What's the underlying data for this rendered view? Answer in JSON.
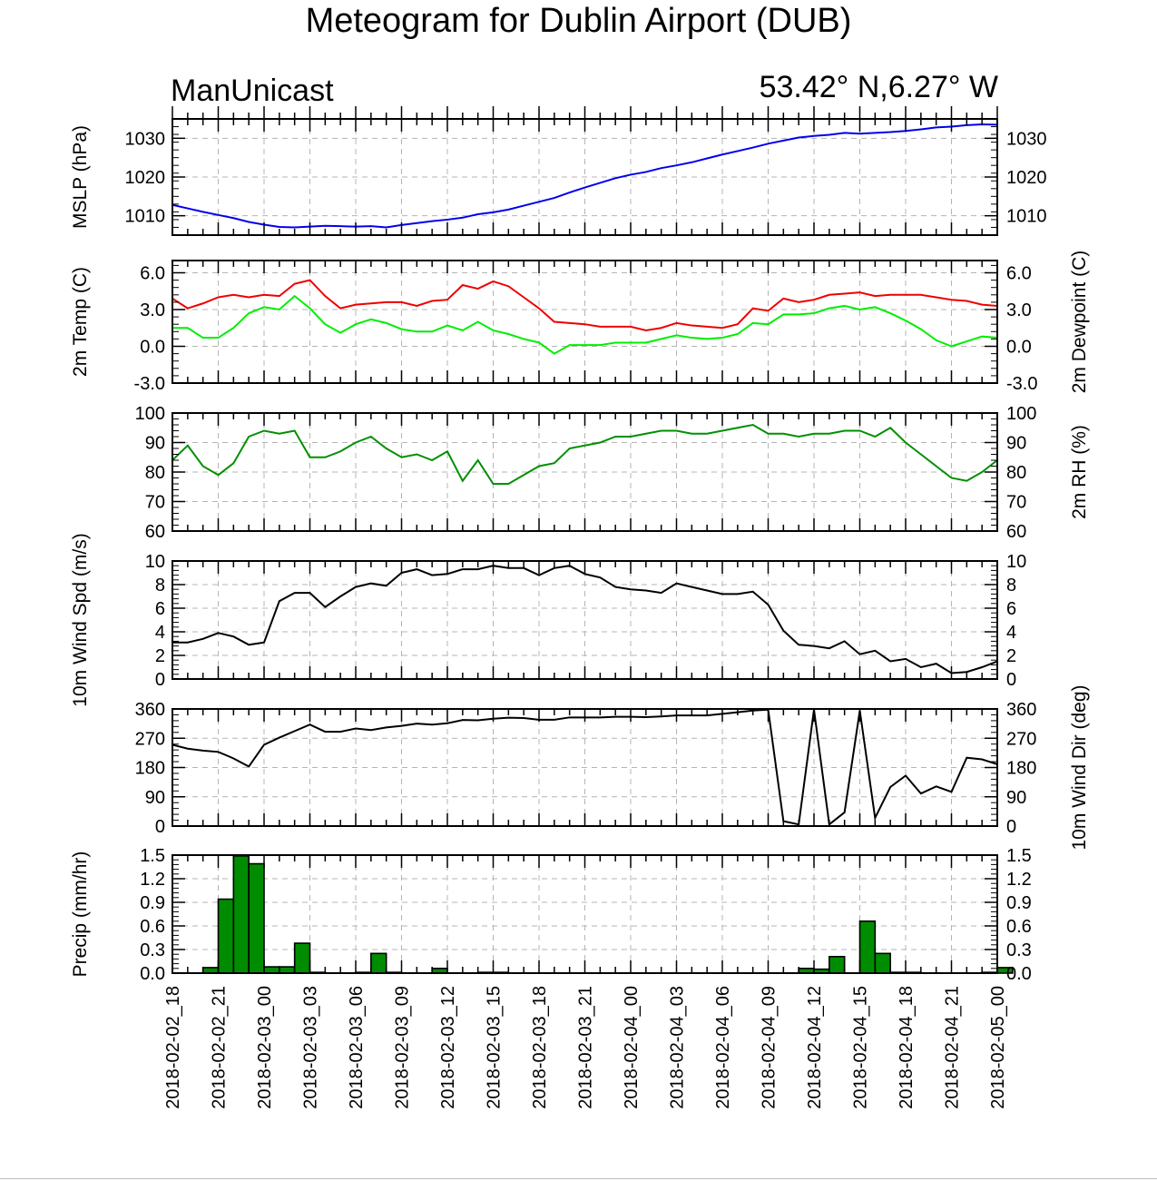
{
  "title": "Meteogram for Dublin Airport (DUB)",
  "model": "ManUnicast",
  "location": "53.42° N,6.27° W",
  "colors": {
    "mslp": "#0000ee",
    "temp": "#ee0000",
    "dewpoint": "#00ee00",
    "rh": "#009000",
    "wind": "#000000",
    "precip_fill": "#008c00",
    "grid": "#b4b4b4"
  },
  "chart_data": [
    {
      "type": "line",
      "name": "mslp",
      "ylabel": "MSLP (hPa)",
      "ylim": [
        1005,
        1035
      ],
      "yticks": [
        1010,
        1020,
        1030
      ],
      "ytick_labels": [
        "1010",
        "1020",
        "1030"
      ],
      "right_ticks": true,
      "series": [
        {
          "color": "#0000ee",
          "values": [
            1012.8,
            1011.9,
            1011.0,
            1010.2,
            1009.4,
            1008.4,
            1007.7,
            1007.1,
            1007.0,
            1007.2,
            1007.4,
            1007.3,
            1007.2,
            1007.3,
            1007.0,
            1007.6,
            1008.1,
            1008.6,
            1009.0,
            1009.5,
            1010.4,
            1010.9,
            1011.6,
            1012.6,
            1013.6,
            1014.6,
            1016.0,
            1017.3,
            1018.5,
            1019.7,
            1020.6,
            1021.3,
            1022.3,
            1023.0,
            1023.8,
            1024.8,
            1025.8,
            1026.7,
            1027.6,
            1028.6,
            1029.4,
            1030.2,
            1030.6,
            1030.9,
            1031.4,
            1031.2,
            1031.4,
            1031.6,
            1031.9,
            1032.3,
            1032.8,
            1033.0,
            1033.4,
            1033.6,
            1033.5,
            1033.4
          ]
        }
      ]
    },
    {
      "type": "line",
      "name": "temperature",
      "ylabel": "2m Temp (C)",
      "ylabel_right": "2m Dewpoint (C)",
      "ylim": [
        -3,
        7
      ],
      "yticks": [
        -3,
        0,
        3,
        6
      ],
      "ytick_labels": [
        "-3.0",
        "0.0",
        "3.0",
        "6.0"
      ],
      "right_ticks": true,
      "series": [
        {
          "color": "#ee0000",
          "values": [
            3.9,
            3.1,
            3.5,
            4.0,
            4.2,
            4.0,
            4.2,
            4.1,
            5.1,
            5.4,
            4.1,
            3.1,
            3.4,
            3.5,
            3.6,
            3.6,
            3.3,
            3.7,
            3.8,
            5.0,
            4.7,
            5.3,
            4.9,
            4.0,
            3.1,
            2.0,
            1.9,
            1.8,
            1.6,
            1.6,
            1.6,
            1.3,
            1.5,
            1.9,
            1.7,
            1.6,
            1.5,
            1.8,
            3.1,
            2.9,
            3.9,
            3.6,
            3.8,
            4.2,
            4.3,
            4.4,
            4.1,
            4.2,
            4.2,
            4.2,
            4.0,
            3.8,
            3.7,
            3.4,
            3.3,
            3.1
          ]
        },
        {
          "color": "#00ee00",
          "values": [
            1.5,
            1.5,
            0.7,
            0.7,
            1.5,
            2.7,
            3.2,
            3.0,
            4.1,
            3.1,
            1.8,
            1.1,
            1.8,
            2.2,
            1.9,
            1.4,
            1.2,
            1.2,
            1.7,
            1.3,
            2.0,
            1.3,
            1.0,
            0.6,
            0.3,
            -0.6,
            0.1,
            0.1,
            0.1,
            0.3,
            0.3,
            0.3,
            0.6,
            0.9,
            0.7,
            0.6,
            0.7,
            1.0,
            1.9,
            1.8,
            2.6,
            2.6,
            2.7,
            3.1,
            3.3,
            3.0,
            3.2,
            2.7,
            2.1,
            1.4,
            0.5,
            0.0,
            0.4,
            0.8,
            0.7,
            0.6
          ]
        }
      ]
    },
    {
      "type": "line",
      "name": "relative-humidity",
      "ylabel_right": "2m RH (%)",
      "ylim": [
        60,
        100
      ],
      "yticks": [
        60,
        70,
        80,
        90,
        100
      ],
      "ytick_labels": [
        "60",
        "70",
        "80",
        "90",
        "100"
      ],
      "right_ticks": true,
      "series": [
        {
          "color": "#009000",
          "values": [
            84,
            89,
            82,
            79,
            83,
            92,
            94,
            93,
            94,
            85,
            85,
            87,
            90,
            92,
            88,
            85,
            86,
            84,
            87,
            77,
            84,
            76,
            76,
            79,
            82,
            83,
            88,
            89,
            90,
            92,
            92,
            93,
            94,
            94,
            93,
            93,
            94,
            95,
            96,
            93,
            93,
            92,
            93,
            93,
            94,
            94,
            92,
            95,
            90,
            86,
            82,
            78,
            77,
            80,
            84,
            83
          ]
        }
      ]
    },
    {
      "type": "line",
      "name": "wind-speed",
      "ylabel": "10m Wind Spd (m/s)",
      "ylim": [
        0,
        10
      ],
      "yticks": [
        0,
        2,
        4,
        6,
        8,
        10
      ],
      "ytick_labels": [
        "0",
        "2",
        "4",
        "6",
        "8",
        "10"
      ],
      "right_ticks": true,
      "series": [
        {
          "color": "#000000",
          "values": [
            3.1,
            3.1,
            3.4,
            3.9,
            3.6,
            2.9,
            3.1,
            6.6,
            7.3,
            7.3,
            6.1,
            7.0,
            7.8,
            8.1,
            7.9,
            9.0,
            9.3,
            8.8,
            8.9,
            9.3,
            9.3,
            9.6,
            9.4,
            9.4,
            8.8,
            9.4,
            9.6,
            8.9,
            8.6,
            7.8,
            7.6,
            7.5,
            7.3,
            8.1,
            7.8,
            7.5,
            7.2,
            7.2,
            7.4,
            6.3,
            4.1,
            2.9,
            2.8,
            2.6,
            3.2,
            2.1,
            2.4,
            1.5,
            1.7,
            1.0,
            1.3,
            0.5,
            0.6,
            1.0,
            1.5,
            2.0
          ]
        }
      ]
    },
    {
      "type": "line",
      "name": "wind-direction",
      "ylabel_right": "10m Wind Dir (deg)",
      "ylim": [
        0,
        360
      ],
      "yticks": [
        0,
        90,
        180,
        270,
        360
      ],
      "ytick_labels": [
        "0",
        "90",
        "180",
        "270",
        "360"
      ],
      "right_ticks": true,
      "series": [
        {
          "color": "#000000",
          "values": [
            250,
            238,
            232,
            228,
            208,
            183,
            250,
            272,
            292,
            312,
            290,
            290,
            300,
            295,
            303,
            308,
            315,
            312,
            316,
            326,
            325,
            330,
            333,
            332,
            327,
            327,
            334,
            334,
            334,
            336,
            336,
            335,
            337,
            340,
            340,
            340,
            345,
            350,
            355,
            358,
            15,
            5,
            358,
            5,
            42,
            355,
            25,
            120,
            155,
            100,
            122,
            105,
            210,
            205,
            190,
            180
          ]
        }
      ]
    },
    {
      "type": "bar",
      "name": "precipitation",
      "ylabel": "Precip (mm/hr)",
      "ylim": [
        0,
        1.5
      ],
      "yticks": [
        0,
        0.3,
        0.6,
        0.9,
        1.2,
        1.5
      ],
      "ytick_labels": [
        "0.0",
        "0.3",
        "0.6",
        "0.9",
        "1.2",
        "1.5"
      ],
      "right_ticks": true,
      "series": [
        {
          "color": "#008c00",
          "values": [
            0,
            0,
            0.07,
            0.94,
            1.49,
            1.39,
            0.08,
            0.08,
            0.38,
            0.01,
            0,
            0,
            0.01,
            0.25,
            0.01,
            0,
            0,
            0.06,
            0,
            0,
            0.01,
            0.01,
            0,
            0,
            0,
            0,
            0,
            0,
            0,
            0,
            0,
            0,
            0,
            0,
            0,
            0,
            0,
            0,
            0,
            0,
            0,
            0.06,
            0.05,
            0.21,
            0,
            0.66,
            0.25,
            0.01,
            0.01,
            0,
            0,
            0,
            0,
            0.01,
            0.07
          ]
        }
      ]
    }
  ],
  "x_axis": {
    "range_hours": [
      0,
      54
    ],
    "tick_labels": [
      "2018-02-02_18",
      "2018-02-02_21",
      "2018-02-03_00",
      "2018-02-03_03",
      "2018-02-03_06",
      "2018-02-03_09",
      "2018-02-03_12",
      "2018-02-03_15",
      "2018-02-03_18",
      "2018-02-03_21",
      "2018-02-04_00",
      "2018-02-04_03",
      "2018-02-04_06",
      "2018-02-04_09",
      "2018-02-04_12",
      "2018-02-04_15",
      "2018-02-04_18",
      "2018-02-04_21",
      "2018-02-05_00"
    ]
  }
}
